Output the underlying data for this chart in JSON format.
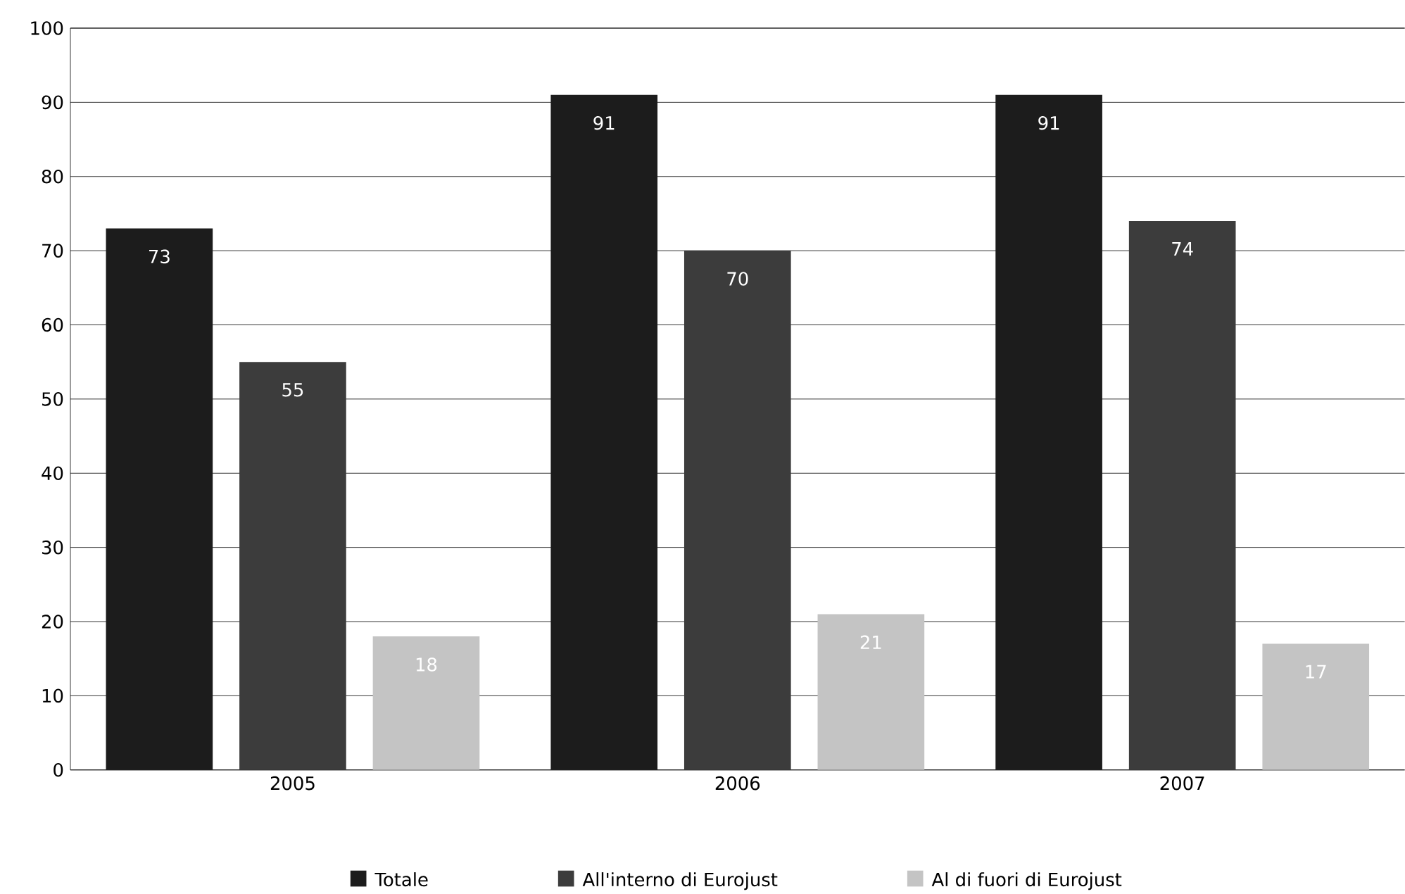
{
  "chart_data": {
    "type": "bar",
    "categories": [
      "2005",
      "2006",
      "2007"
    ],
    "series": [
      {
        "name": "Totale",
        "color": "#1c1c1c",
        "values": [
          73,
          91,
          91
        ]
      },
      {
        "name": "All'interno di Eurojust",
        "color": "#3c3c3c",
        "values": [
          55,
          70,
          74
        ]
      },
      {
        "name": "Al di fuori di Eurojust",
        "color": "#c4c4c4",
        "values": [
          18,
          21,
          17
        ]
      }
    ],
    "ylim": [
      0,
      100
    ],
    "yticks": [
      0,
      10,
      20,
      30,
      40,
      50,
      60,
      70,
      80,
      90,
      100
    ],
    "grid": "y",
    "legend": "bottom",
    "data_labels": true
  }
}
